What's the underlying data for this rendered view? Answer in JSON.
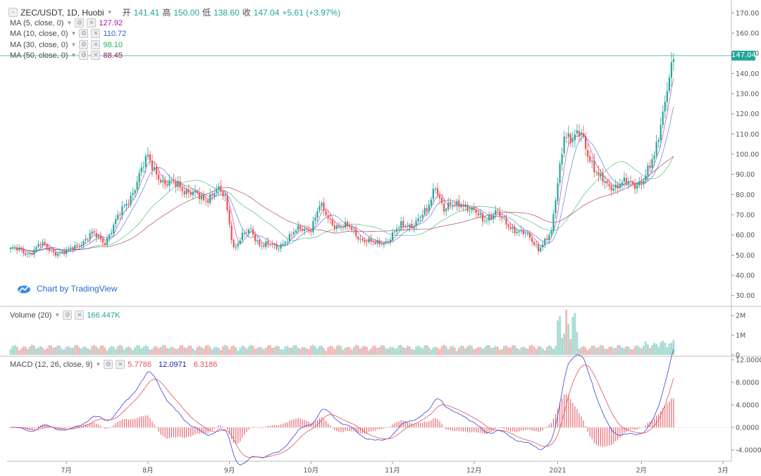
{
  "header": {
    "collapse_icon": "collapse-square-icon",
    "symbol": "ZEC/USDT, 1D, Huobi",
    "caret_icon": "caret-down-icon",
    "open_label": "开",
    "open_value": "141.41",
    "high_label": "高",
    "high_value": "150.00",
    "low_label": "低",
    "low_value": "138.60",
    "close_label": "收",
    "close_value": "147.04",
    "change": "+5.61 (+3.97%)"
  },
  "indicators": [
    {
      "label": "MA (5, close, 0)",
      "value": "127.92",
      "color": "#b0169c"
    },
    {
      "label": "MA (10, close, 0)",
      "value": "110.72",
      "color": "#2f5fcf"
    },
    {
      "label": "MA (30, close, 0)",
      "value": "98.10",
      "color": "#1fb35f"
    },
    {
      "label": "MA (50, close, 0)",
      "value": "88.45",
      "color": "#9b1b5a"
    }
  ],
  "volume_pane": {
    "label": "Volume (20)",
    "value": "166.447K"
  },
  "macd_pane": {
    "label": "MACD (12, 26, close, 9)",
    "hist": "5.7786",
    "macd": "12.0971",
    "signal": "6.3186"
  },
  "watermark": {
    "text": "Chart by TradingView",
    "icon": "tradingview-cloud-icon"
  },
  "price_badge": "147.04",
  "colors": {
    "up": "#26a69a",
    "down": "#ef5350",
    "macd": "#3f3fd6",
    "signal": "#e0505a",
    "grid": "#f0f0f0"
  },
  "chart_data": {
    "type": "candlestick",
    "symbol": "ZEC/USDT",
    "x_ticks": [
      "7月",
      "8月",
      "9月",
      "10月",
      "11月",
      "12月",
      "2021",
      "2月",
      "3月"
    ],
    "price_axis": {
      "ticks": [
        "30.00",
        "40.00",
        "50.00",
        "60.00",
        "70.00",
        "80.00",
        "90.00",
        "100.00",
        "110.00",
        "120.00",
        "130.00",
        "140.00",
        "150.00",
        "160.00",
        "170.00"
      ],
      "range": [
        25,
        175
      ]
    },
    "volume_axis": {
      "ticks": [
        "0",
        "1M",
        "2M"
      ],
      "range": [
        0,
        2400000
      ]
    },
    "macd_axis": {
      "ticks": [
        "-4.0000",
        "0.0000",
        "4.0000",
        "8.0000",
        "12.0000"
      ],
      "range": [
        -6,
        12.5
      ]
    },
    "close_anchors": [
      [
        0,
        53
      ],
      [
        8,
        51
      ],
      [
        14,
        55
      ],
      [
        20,
        52
      ],
      [
        26,
        51
      ],
      [
        32,
        56
      ],
      [
        38,
        60
      ],
      [
        44,
        57
      ],
      [
        50,
        68
      ],
      [
        56,
        80
      ],
      [
        60,
        89
      ],
      [
        64,
        98
      ],
      [
        68,
        92
      ],
      [
        72,
        84
      ],
      [
        78,
        86
      ],
      [
        84,
        80
      ],
      [
        90,
        78
      ],
      [
        96,
        82
      ],
      [
        100,
        78
      ],
      [
        104,
        54
      ],
      [
        108,
        59
      ],
      [
        112,
        62
      ],
      [
        116,
        56
      ],
      [
        120,
        55
      ],
      [
        124,
        53
      ],
      [
        128,
        58
      ],
      [
        134,
        62
      ],
      [
        140,
        64
      ],
      [
        144,
        74
      ],
      [
        148,
        68
      ],
      [
        152,
        65
      ],
      [
        158,
        63
      ],
      [
        164,
        58
      ],
      [
        170,
        55
      ],
      [
        176,
        58
      ],
      [
        182,
        64
      ],
      [
        188,
        66
      ],
      [
        194,
        71
      ],
      [
        198,
        86
      ],
      [
        202,
        72
      ],
      [
        206,
        74
      ],
      [
        210,
        77
      ],
      [
        214,
        72
      ],
      [
        220,
        68
      ],
      [
        226,
        71
      ],
      [
        230,
        66
      ],
      [
        234,
        64
      ],
      [
        238,
        61
      ],
      [
        242,
        58
      ],
      [
        246,
        54
      ],
      [
        252,
        60
      ],
      [
        258,
        112
      ],
      [
        262,
        106
      ],
      [
        266,
        110
      ],
      [
        270,
        99
      ],
      [
        274,
        88
      ],
      [
        278,
        84
      ],
      [
        284,
        86
      ],
      [
        290,
        84
      ],
      [
        296,
        90
      ],
      [
        300,
        97
      ],
      [
        303,
        115
      ],
      [
        306,
        136
      ],
      [
        309,
        147
      ]
    ],
    "volume_note": "daily volume bars colored by candle direction",
    "macd_note": "MACD line, signal line and histogram"
  }
}
